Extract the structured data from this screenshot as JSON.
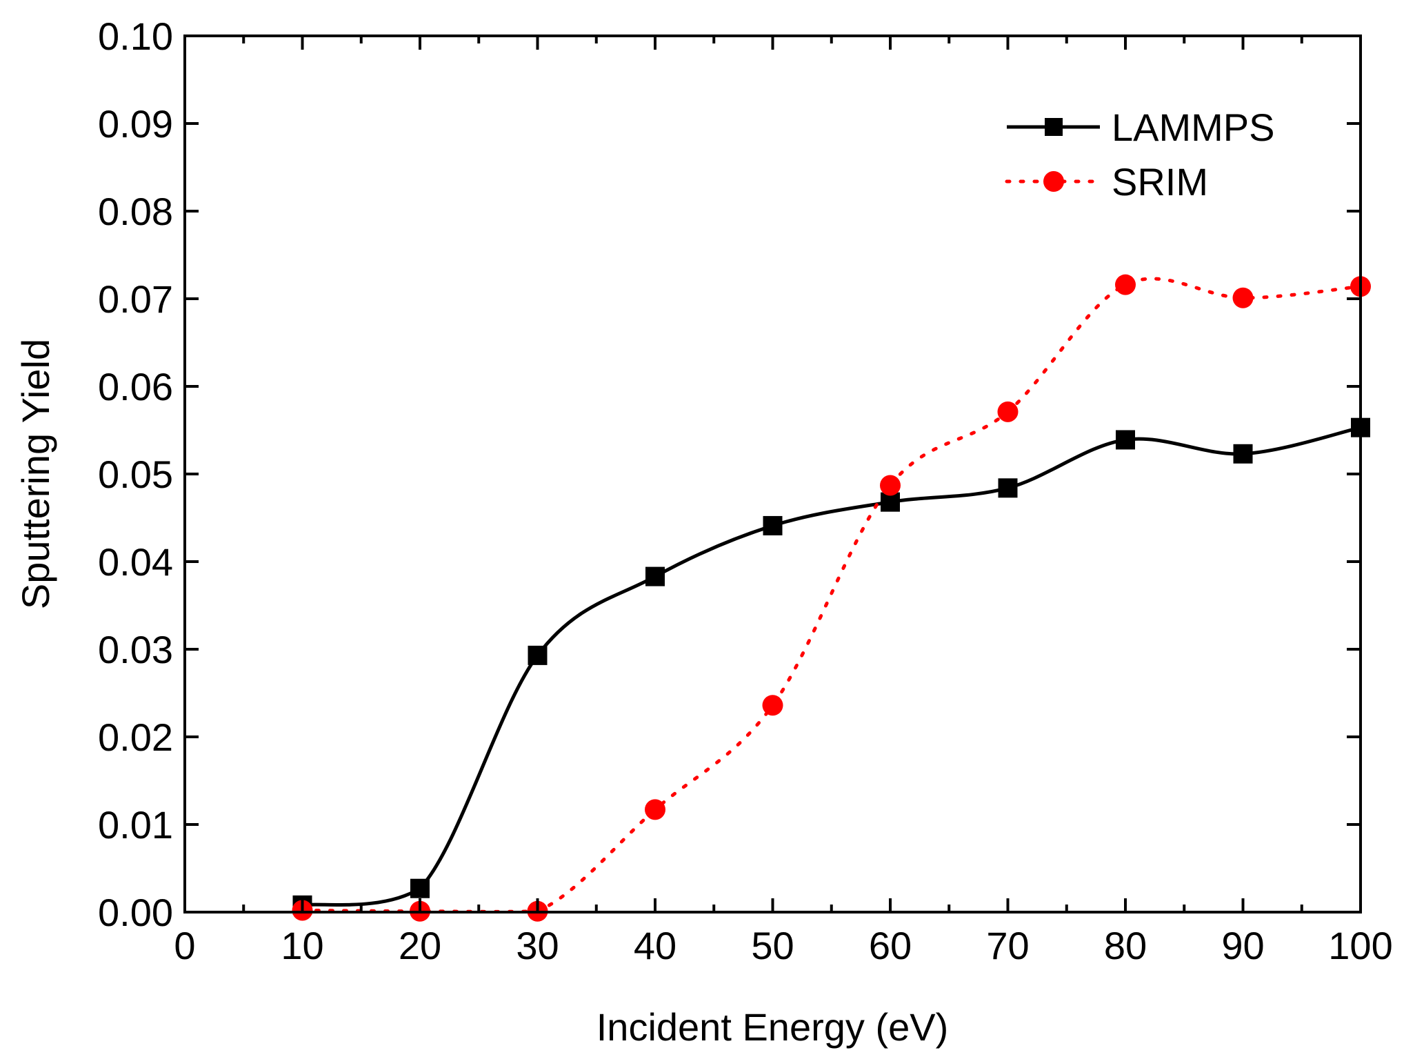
{
  "chart_data": {
    "type": "line",
    "title": "",
    "xlabel": "Incident Energy (eV)",
    "ylabel": "Sputtering Yield",
    "xlim": [
      0,
      100
    ],
    "ylim": [
      0,
      0.1
    ],
    "xticks": [
      "0",
      "10",
      "20",
      "30",
      "40",
      "50",
      "60",
      "70",
      "80",
      "90",
      "100"
    ],
    "yticks": [
      "0.00",
      "0.01",
      "0.02",
      "0.03",
      "0.04",
      "0.05",
      "0.06",
      "0.07",
      "0.08",
      "0.09",
      "0.10"
    ],
    "grid": false,
    "legend_position": "top-right",
    "series": [
      {
        "name": "LAMMPS",
        "marker": "square",
        "line_style": "solid",
        "color": "#000000",
        "x": [
          10,
          20,
          30,
          40,
          50,
          60,
          70,
          80,
          90,
          100
        ],
        "y": [
          0.0008,
          0.0027,
          0.0293,
          0.0383,
          0.0441,
          0.0468,
          0.0484,
          0.0539,
          0.0523,
          0.0553
        ]
      },
      {
        "name": "SRIM",
        "marker": "circle",
        "line_style": "dotted",
        "color": "#ff0000",
        "x": [
          10,
          20,
          30,
          40,
          50,
          60,
          70,
          80,
          90,
          100
        ],
        "y": [
          0.0002,
          0.0001,
          0.0001,
          0.0117,
          0.0236,
          0.0487,
          0.0571,
          0.0716,
          0.0701,
          0.0714
        ]
      }
    ]
  }
}
